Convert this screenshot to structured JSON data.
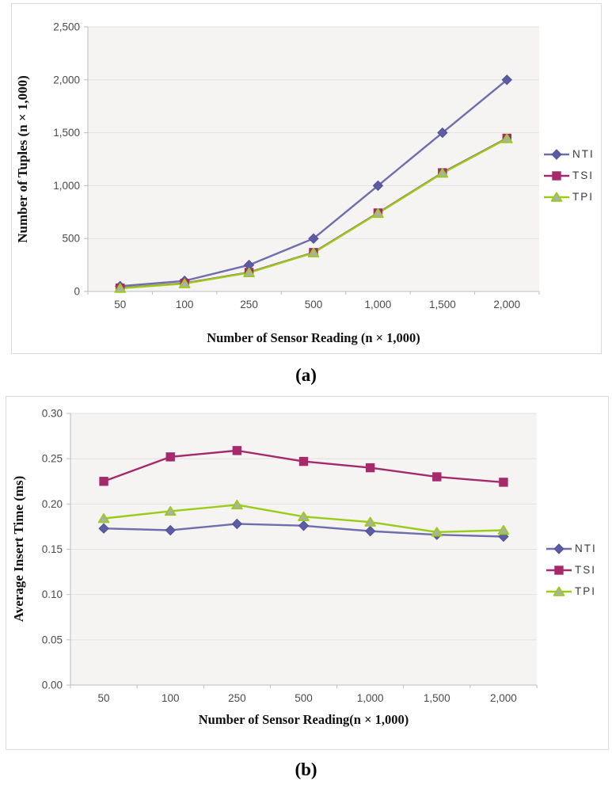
{
  "captions": {
    "a": "(a)",
    "b": "(b)"
  },
  "colors": {
    "plot_bg": "#f5f4f2",
    "gridline": "#e2e1df",
    "axis": "#bdbdbd",
    "tick": "#bdbdbd",
    "tick_label": "#4a4a4a",
    "panel_border": "#d9d9d9",
    "nti": "#6e6eac",
    "nti_marker": "#5c5ca4",
    "tsi": "#a42a6c",
    "tpi": "#99cc19",
    "tpi_marker_fill": "#aeaeae"
  },
  "chart_data": [
    {
      "type": "line",
      "xlabel": "Number of Sensor Reading (n × 1,000)",
      "ylabel": "Number of Tuples (n × 1,000)",
      "categories": [
        "50",
        "100",
        "250",
        "500",
        "1,000",
        "1,500",
        "2,000"
      ],
      "ylim": [
        0,
        2500
      ],
      "ytick_labels": [
        "0",
        "500",
        "1,000",
        "1,500",
        "2,000",
        "2,500"
      ],
      "grid": true,
      "legend_position": "right",
      "legend_entries": [
        "NTI",
        "TSI",
        "TPI"
      ],
      "series": [
        {
          "name": "NTI",
          "marker": "diamond",
          "color": "#6e6eac",
          "marker_fill": "#5c5ca4",
          "marker_stroke": "#51519a",
          "values": [
            50,
            100,
            250,
            500,
            1000,
            1500,
            2000
          ]
        },
        {
          "name": "TSI",
          "marker": "square",
          "color": "#a42a6c",
          "marker_fill": "#a42a6c",
          "marker_stroke": "#a42a6c",
          "values": [
            32,
            77,
            180,
            368,
            742,
            1122,
            1448
          ]
        },
        {
          "name": "TPI",
          "marker": "triangle",
          "color": "#99cc19",
          "marker_fill": "#aeaeae",
          "marker_stroke": "#99cc19",
          "values": [
            30,
            74,
            177,
            365,
            738,
            1118,
            1444
          ]
        }
      ]
    },
    {
      "type": "line",
      "xlabel": "Number of Sensor Reading(n × 1,000)",
      "ylabel": "Average Insert Time (ms)",
      "categories": [
        "50",
        "100",
        "250",
        "500",
        "1,000",
        "1,500",
        "2,000"
      ],
      "ylim": [
        0,
        0.3
      ],
      "ytick_labels": [
        "0.00",
        "0.05",
        "0.10",
        "0.15",
        "0.20",
        "0.25",
        "0.30"
      ],
      "grid": true,
      "legend_position": "right",
      "legend_entries": [
        "NTI",
        "TSI",
        "TPI"
      ],
      "series": [
        {
          "name": "NTI",
          "marker": "diamond",
          "color": "#6e6eac",
          "marker_fill": "#5c5ca4",
          "marker_stroke": "#51519a",
          "values": [
            0.173,
            0.171,
            0.178,
            0.176,
            0.17,
            0.166,
            0.164
          ]
        },
        {
          "name": "TSI",
          "marker": "square",
          "color": "#a42a6c",
          "marker_fill": "#a42a6c",
          "marker_stroke": "#a42a6c",
          "values": [
            0.225,
            0.252,
            0.259,
            0.247,
            0.24,
            0.23,
            0.224
          ]
        },
        {
          "name": "TPI",
          "marker": "triangle",
          "color": "#99cc19",
          "marker_fill": "#aeaeae",
          "marker_stroke": "#99cc19",
          "values": [
            0.184,
            0.192,
            0.199,
            0.186,
            0.18,
            0.169,
            0.171
          ]
        }
      ]
    }
  ]
}
